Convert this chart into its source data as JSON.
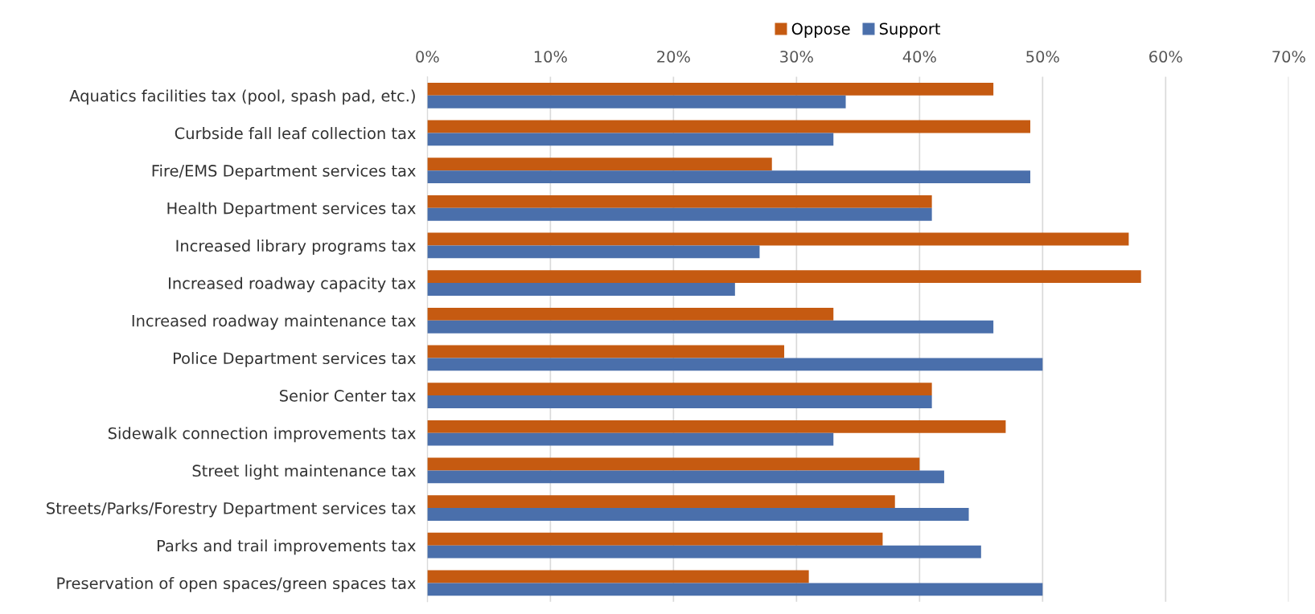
{
  "chart_data": {
    "type": "bar",
    "orientation": "horizontal",
    "categories": [
      "Aquatics facilities tax (pool, spash pad, etc.)",
      "Curbside fall leaf collection tax",
      "Fire/EMS Department services tax",
      "Health Department services tax",
      "Increased library programs tax",
      "Increased roadway capacity tax",
      "Increased roadway maintenance tax",
      "Police Department services tax",
      "Senior Center tax",
      "Sidewalk connection improvements tax",
      "Street light maintenance tax",
      "Streets/Parks/Forestry Department services tax",
      "Parks and trail improvements tax",
      "Preservation of open spaces/green spaces tax"
    ],
    "series": [
      {
        "name": "Oppose",
        "color": "#c55a11",
        "values": [
          46,
          49,
          28,
          41,
          57,
          58,
          33,
          29,
          41,
          47,
          40,
          38,
          37,
          31
        ]
      },
      {
        "name": "Support",
        "color": "#4a6fab",
        "values": [
          34,
          33,
          49,
          41,
          27,
          25,
          46,
          50,
          41,
          33,
          42,
          44,
          45,
          50
        ]
      }
    ],
    "xlim": [
      0,
      70
    ],
    "xticks": [
      {
        "value": 0,
        "label": "0%"
      },
      {
        "value": 10,
        "label": "10%"
      },
      {
        "value": 20,
        "label": "20%"
      },
      {
        "value": 30,
        "label": "30%"
      },
      {
        "value": 40,
        "label": "40%"
      },
      {
        "value": 50,
        "label": "50%"
      },
      {
        "value": 60,
        "label": "60%"
      },
      {
        "value": 70,
        "label": "70%"
      }
    ],
    "grid": "x",
    "legend": "top"
  }
}
